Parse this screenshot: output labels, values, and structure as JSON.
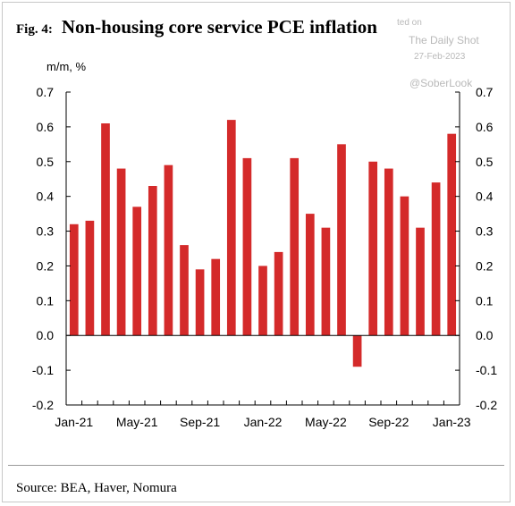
{
  "figure": {
    "label": "Fig. 4:",
    "title": "Non-housing core service PCE inflation",
    "source": "Source: BEA, Haver, Nomura"
  },
  "watermark": {
    "line1": "ted on",
    "line2": "The Daily Shot",
    "line3": "27-Feb-2023",
    "line4": "@SoberLook"
  },
  "colors": {
    "bar": "#d42a2a",
    "axis": "#000000"
  },
  "chart_data": {
    "type": "bar",
    "title": "Non-housing core service PCE inflation",
    "ylabel": "m/m, %",
    "xlabel": "",
    "ylim": [
      -0.2,
      0.7
    ],
    "yticks": [
      0.7,
      0.6,
      0.5,
      0.4,
      0.3,
      0.2,
      0.1,
      0.0,
      -0.1,
      -0.2
    ],
    "ytick_labels": [
      "0.7",
      "0.6",
      "0.5",
      "0.4",
      "0.3",
      "0.2",
      "0.1",
      "0.0",
      "-0.1",
      "-0.2"
    ],
    "categories": [
      "Jan-21",
      "Feb-21",
      "Mar-21",
      "Apr-21",
      "May-21",
      "Jun-21",
      "Jul-21",
      "Aug-21",
      "Sep-21",
      "Oct-21",
      "Nov-21",
      "Dec-21",
      "Jan-22",
      "Feb-22",
      "Mar-22",
      "Apr-22",
      "May-22",
      "Jun-22",
      "Jul-22",
      "Aug-22",
      "Sep-22",
      "Oct-22",
      "Nov-22",
      "Dec-22",
      "Jan-23"
    ],
    "x_tick_labels": [
      "Jan-21",
      "May-21",
      "Sep-21",
      "Jan-22",
      "May-22",
      "Sep-22",
      "Jan-23"
    ],
    "x_tick_every": 4,
    "values": [
      0.32,
      0.33,
      0.61,
      0.48,
      0.37,
      0.43,
      0.49,
      0.26,
      0.19,
      0.22,
      0.62,
      0.51,
      0.2,
      0.24,
      0.51,
      0.35,
      0.31,
      0.55,
      -0.09,
      0.5,
      0.48,
      0.4,
      0.31,
      0.44,
      0.58
    ],
    "dual_y_axis": true,
    "grid": false,
    "legend": "none"
  }
}
